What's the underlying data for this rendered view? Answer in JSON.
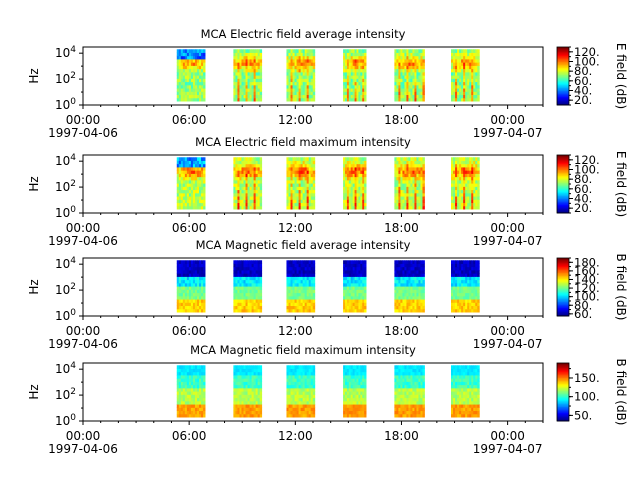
{
  "chart_data": [
    {
      "type": "heatmap",
      "title": "MCA  Electric field average intensity",
      "ylabel": "Hz",
      "y_tick_labels": [
        "10^0",
        "10^2",
        "10^4"
      ],
      "ylim_hz": [
        1,
        30000
      ],
      "y_scale": "log",
      "x_tick_labels": [
        "00:00",
        "06:00",
        "12:00",
        "18:00",
        "00:00"
      ],
      "x_date_labels": [
        "1997-04-06",
        "1997-04-07"
      ],
      "x_ticks_hours": [
        0,
        6,
        12,
        18,
        24
      ],
      "xlim_hours": [
        0,
        26
      ],
      "colorbar": {
        "label": "E field (dB)",
        "ticks": [
          20,
          40,
          60,
          80,
          100,
          120
        ],
        "range": [
          10,
          130
        ]
      },
      "style": "electric",
      "passes": [
        {
          "start": 5.3,
          "end": 6.9
        },
        {
          "start": 8.5,
          "end": 10.1
        },
        {
          "start": 11.5,
          "end": 13.1
        },
        {
          "start": 14.7,
          "end": 16.0
        },
        {
          "start": 17.6,
          "end": 19.3
        },
        {
          "start": 20.8,
          "end": 22.4
        }
      ]
    },
    {
      "type": "heatmap",
      "title": "MCA  Electric field maximum intensity",
      "ylabel": "Hz",
      "y_tick_labels": [
        "10^0",
        "10^2",
        "10^4"
      ],
      "ylim_hz": [
        1,
        30000
      ],
      "y_scale": "log",
      "x_tick_labels": [
        "00:00",
        "06:00",
        "12:00",
        "18:00",
        "00:00"
      ],
      "x_date_labels": [
        "1997-04-06",
        "1997-04-07"
      ],
      "x_ticks_hours": [
        0,
        6,
        12,
        18,
        24
      ],
      "xlim_hours": [
        0,
        26
      ],
      "colorbar": {
        "label": "E field (dB)",
        "ticks": [
          20,
          40,
          60,
          80,
          100,
          120
        ],
        "range": [
          10,
          130
        ]
      },
      "style": "electric",
      "passes": [
        {
          "start": 5.3,
          "end": 6.9
        },
        {
          "start": 8.5,
          "end": 10.1
        },
        {
          "start": 11.5,
          "end": 13.1
        },
        {
          "start": 14.7,
          "end": 16.0
        },
        {
          "start": 17.6,
          "end": 19.3
        },
        {
          "start": 20.8,
          "end": 22.4
        }
      ]
    },
    {
      "type": "heatmap",
      "title": "MCA  Magnetic field average intensity",
      "ylabel": "Hz",
      "y_tick_labels": [
        "10^0",
        "10^2",
        "10^4"
      ],
      "ylim_hz": [
        1,
        30000
      ],
      "y_scale": "log",
      "x_tick_labels": [
        "00:00",
        "06:00",
        "12:00",
        "18:00",
        "00:00"
      ],
      "x_date_labels": [
        "1997-04-06",
        "1997-04-07"
      ],
      "x_ticks_hours": [
        0,
        6,
        12,
        18,
        24
      ],
      "xlim_hours": [
        0,
        26
      ],
      "colorbar": {
        "label": "B field (dB)",
        "ticks": [
          60,
          80,
          100,
          120,
          140,
          160,
          180
        ],
        "range": [
          55,
          190
        ]
      },
      "style": "magnetic",
      "passes": [
        {
          "start": 5.3,
          "end": 6.9
        },
        {
          "start": 8.5,
          "end": 10.1
        },
        {
          "start": 11.5,
          "end": 13.1
        },
        {
          "start": 14.7,
          "end": 16.0
        },
        {
          "start": 17.6,
          "end": 19.3
        },
        {
          "start": 20.8,
          "end": 22.4
        }
      ]
    },
    {
      "type": "heatmap",
      "title": "MCA  Magnetic field maximum intensity",
      "ylabel": "Hz",
      "y_tick_labels": [
        "10^0",
        "10^2",
        "10^4"
      ],
      "ylim_hz": [
        1,
        30000
      ],
      "y_scale": "log",
      "x_tick_labels": [
        "00:00",
        "06:00",
        "12:00",
        "18:00",
        "00:00"
      ],
      "x_date_labels": [
        "1997-04-06",
        "1997-04-07"
      ],
      "x_ticks_hours": [
        0,
        6,
        12,
        18,
        24
      ],
      "xlim_hours": [
        0,
        26
      ],
      "colorbar": {
        "label": "B field (dB)",
        "ticks": [
          50,
          100,
          150
        ],
        "range": [
          35,
          190
        ]
      },
      "style": "magnetic-max",
      "passes": [
        {
          "start": 5.3,
          "end": 6.9
        },
        {
          "start": 8.5,
          "end": 10.1
        },
        {
          "start": 11.5,
          "end": 13.1
        },
        {
          "start": 14.7,
          "end": 16.0
        },
        {
          "start": 17.6,
          "end": 19.3
        },
        {
          "start": 20.8,
          "end": 22.4
        }
      ]
    }
  ]
}
